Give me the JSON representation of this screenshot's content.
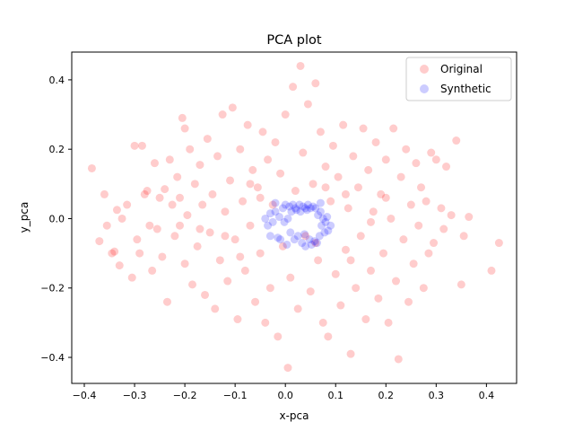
{
  "chart_data": {
    "type": "scatter",
    "title": "PCA plot",
    "xlabel": "x-pca",
    "ylabel": "y_pca",
    "xlim": [
      -0.425,
      0.46
    ],
    "ylim": [
      -0.475,
      0.48
    ],
    "x_ticks": [
      -0.4,
      -0.3,
      -0.2,
      -0.1,
      0.0,
      0.1,
      0.2,
      0.3,
      0.4
    ],
    "y_ticks": [
      -0.4,
      -0.2,
      0.0,
      0.2,
      0.4
    ],
    "x_tick_labels": [
      "−0.4",
      "−0.3",
      "−0.2",
      "−0.1",
      "0.0",
      "0.1",
      "0.2",
      "0.3",
      "0.4"
    ],
    "y_tick_labels": [
      "−0.4",
      "−0.2",
      "0.0",
      "0.2",
      "0.4"
    ],
    "grid": false,
    "legend_position": "top-right",
    "series": [
      {
        "name": "Original",
        "color": "#ff0000",
        "alpha": 0.2,
        "points": [
          [
            -0.385,
            0.145
          ],
          [
            -0.37,
            -0.065
          ],
          [
            -0.36,
            0.07
          ],
          [
            -0.355,
            -0.02
          ],
          [
            -0.345,
            -0.1
          ],
          [
            -0.34,
            -0.095
          ],
          [
            -0.335,
            0.025
          ],
          [
            -0.33,
            -0.135
          ],
          [
            -0.325,
            0.0
          ],
          [
            -0.315,
            0.04
          ],
          [
            -0.305,
            -0.17
          ],
          [
            -0.3,
            0.21
          ],
          [
            -0.295,
            -0.06
          ],
          [
            -0.29,
            -0.1
          ],
          [
            -0.285,
            0.21
          ],
          [
            -0.28,
            0.07
          ],
          [
            -0.275,
            0.08
          ],
          [
            -0.27,
            -0.02
          ],
          [
            -0.265,
            -0.15
          ],
          [
            -0.26,
            0.16
          ],
          [
            -0.255,
            -0.03
          ],
          [
            -0.25,
            0.06
          ],
          [
            -0.245,
            -0.11
          ],
          [
            -0.24,
            0.085
          ],
          [
            -0.235,
            -0.24
          ],
          [
            -0.23,
            0.17
          ],
          [
            -0.225,
            0.04
          ],
          [
            -0.22,
            -0.05
          ],
          [
            -0.215,
            0.12
          ],
          [
            -0.21,
            -0.02
          ],
          [
            -0.205,
            0.29
          ],
          [
            -0.2,
            0.26
          ],
          [
            -0.2,
            -0.13
          ],
          [
            -0.195,
            0.01
          ],
          [
            -0.19,
            0.2
          ],
          [
            -0.185,
            -0.19
          ],
          [
            -0.18,
            0.1
          ],
          [
            -0.175,
            -0.08
          ],
          [
            -0.17,
            0.155
          ],
          [
            -0.165,
            0.04
          ],
          [
            -0.16,
            -0.22
          ],
          [
            -0.155,
            0.23
          ],
          [
            -0.15,
            -0.04
          ],
          [
            -0.145,
            0.07
          ],
          [
            -0.14,
            -0.26
          ],
          [
            -0.135,
            0.18
          ],
          [
            -0.13,
            -0.12
          ],
          [
            -0.125,
            0.3
          ],
          [
            -0.12,
            0.02
          ],
          [
            -0.115,
            -0.18
          ],
          [
            -0.11,
            0.11
          ],
          [
            -0.105,
            0.32
          ],
          [
            -0.1,
            -0.06
          ],
          [
            -0.095,
            -0.29
          ],
          [
            -0.09,
            0.2
          ],
          [
            -0.085,
            0.05
          ],
          [
            -0.08,
            -0.15
          ],
          [
            -0.075,
            0.27
          ],
          [
            -0.07,
            -0.02
          ],
          [
            -0.065,
            0.14
          ],
          [
            -0.06,
            -0.24
          ],
          [
            -0.055,
            0.09
          ],
          [
            -0.05,
            -0.1
          ],
          [
            -0.045,
            0.25
          ],
          [
            -0.04,
            -0.3
          ],
          [
            -0.035,
            0.17
          ],
          [
            -0.03,
            -0.2
          ],
          [
            -0.025,
            0.04
          ],
          [
            -0.02,
            0.22
          ],
          [
            -0.015,
            -0.34
          ],
          [
            -0.01,
            0.13
          ],
          [
            -0.005,
            -0.08
          ],
          [
            0.0,
            0.3
          ],
          [
            0.005,
            -0.43
          ],
          [
            0.01,
            -0.17
          ],
          [
            0.015,
            0.38
          ],
          [
            0.02,
            0.08
          ],
          [
            0.025,
            -0.26
          ],
          [
            0.03,
            0.44
          ],
          [
            0.035,
            0.19
          ],
          [
            0.04,
            -0.05
          ],
          [
            0.045,
            0.33
          ],
          [
            0.05,
            -0.21
          ],
          [
            0.055,
            0.1
          ],
          [
            0.06,
            0.39
          ],
          [
            0.065,
            -0.12
          ],
          [
            0.07,
            0.25
          ],
          [
            0.075,
            -0.3
          ],
          [
            0.08,
            0.15
          ],
          [
            0.085,
            -0.34
          ],
          [
            0.09,
            0.05
          ],
          [
            0.095,
            0.21
          ],
          [
            0.1,
            -0.16
          ],
          [
            0.105,
            0.12
          ],
          [
            0.11,
            -0.25
          ],
          [
            0.115,
            0.27
          ],
          [
            0.12,
            -0.09
          ],
          [
            0.125,
            0.03
          ],
          [
            0.13,
            -0.39
          ],
          [
            0.135,
            0.18
          ],
          [
            0.14,
            -0.2
          ],
          [
            0.145,
            0.09
          ],
          [
            0.15,
            -0.05
          ],
          [
            0.155,
            0.26
          ],
          [
            0.16,
            -0.29
          ],
          [
            0.165,
            0.14
          ],
          [
            0.17,
            -0.15
          ],
          [
            0.175,
            0.02
          ],
          [
            0.18,
            0.22
          ],
          [
            0.185,
            -0.23
          ],
          [
            0.19,
            0.07
          ],
          [
            0.195,
            -0.1
          ],
          [
            0.2,
            0.17
          ],
          [
            0.205,
            -0.3
          ],
          [
            0.21,
            0.0
          ],
          [
            0.215,
            0.26
          ],
          [
            0.22,
            -0.18
          ],
          [
            0.225,
            -0.405
          ],
          [
            0.23,
            0.12
          ],
          [
            0.235,
            -0.06
          ],
          [
            0.24,
            0.2
          ],
          [
            0.245,
            -0.24
          ],
          [
            0.25,
            0.04
          ],
          [
            0.255,
            -0.13
          ],
          [
            0.26,
            0.16
          ],
          [
            0.265,
            -0.02
          ],
          [
            0.27,
            0.09
          ],
          [
            0.275,
            -0.2
          ],
          [
            0.28,
            0.05
          ],
          [
            0.285,
            -0.1
          ],
          [
            0.29,
            0.19
          ],
          [
            0.295,
            -0.07
          ],
          [
            0.3,
            0.17
          ],
          [
            0.31,
            0.03
          ],
          [
            0.315,
            -0.03
          ],
          [
            0.32,
            0.15
          ],
          [
            0.33,
            0.01
          ],
          [
            0.34,
            0.225
          ],
          [
            0.35,
            -0.19
          ],
          [
            0.355,
            -0.05
          ],
          [
            0.365,
            0.005
          ],
          [
            0.41,
            -0.15
          ],
          [
            0.425,
            -0.07
          ],
          [
            -0.05,
            0.06
          ],
          [
            0.12,
            0.07
          ],
          [
            -0.17,
            -0.03
          ],
          [
            0.17,
            -0.01
          ],
          [
            -0.09,
            -0.11
          ],
          [
            0.08,
            0.09
          ],
          [
            0.2,
            0.06
          ],
          [
            -0.21,
            0.06
          ],
          [
            0.06,
            -0.07
          ],
          [
            -0.07,
            0.1
          ],
          [
            0.13,
            -0.12
          ],
          [
            -0.12,
            -0.05
          ]
        ]
      },
      {
        "name": "Synthetic",
        "color": "#0000ff",
        "alpha": 0.2,
        "points": [
          [
            -0.04,
            0.0
          ],
          [
            -0.035,
            -0.02
          ],
          [
            -0.03,
            0.015
          ],
          [
            -0.025,
            -0.01
          ],
          [
            -0.02,
            0.02
          ],
          [
            -0.015,
            -0.055
          ],
          [
            -0.012,
            0.005
          ],
          [
            -0.01,
            -0.06
          ],
          [
            -0.005,
            0.03
          ],
          [
            -0.002,
            -0.01
          ],
          [
            0.0,
            0.04
          ],
          [
            0.003,
            -0.075
          ],
          [
            0.005,
            0.0
          ],
          [
            0.008,
            0.035
          ],
          [
            0.01,
            -0.04
          ],
          [
            0.012,
            0.02
          ],
          [
            0.015,
            0.04
          ],
          [
            0.018,
            -0.06
          ],
          [
            0.02,
            0.03
          ],
          [
            0.022,
            0.025
          ],
          [
            0.025,
            -0.05
          ],
          [
            0.028,
            0.04
          ],
          [
            0.03,
            0.02
          ],
          [
            0.033,
            -0.07
          ],
          [
            0.035,
            0.035
          ],
          [
            0.038,
            -0.045
          ],
          [
            0.04,
            0.03
          ],
          [
            0.043,
            0.025
          ],
          [
            0.045,
            0.04
          ],
          [
            0.048,
            -0.06
          ],
          [
            0.05,
            0.03
          ],
          [
            0.052,
            -0.075
          ],
          [
            0.055,
            0.035
          ],
          [
            0.058,
            -0.065
          ],
          [
            0.06,
            0.03
          ],
          [
            0.063,
            -0.07
          ],
          [
            0.065,
            0.01
          ],
          [
            0.068,
            -0.05
          ],
          [
            0.07,
            0.02
          ],
          [
            0.072,
            -0.02
          ],
          [
            0.075,
            0.0
          ],
          [
            0.078,
            -0.04
          ],
          [
            0.08,
            -0.01
          ],
          [
            0.083,
            0.005
          ],
          [
            0.085,
            -0.035
          ],
          [
            -0.03,
            -0.05
          ],
          [
            -0.02,
            0.045
          ],
          [
            0.04,
            -0.08
          ],
          [
            0.07,
            0.045
          ],
          [
            0.09,
            -0.02
          ]
        ]
      }
    ]
  }
}
